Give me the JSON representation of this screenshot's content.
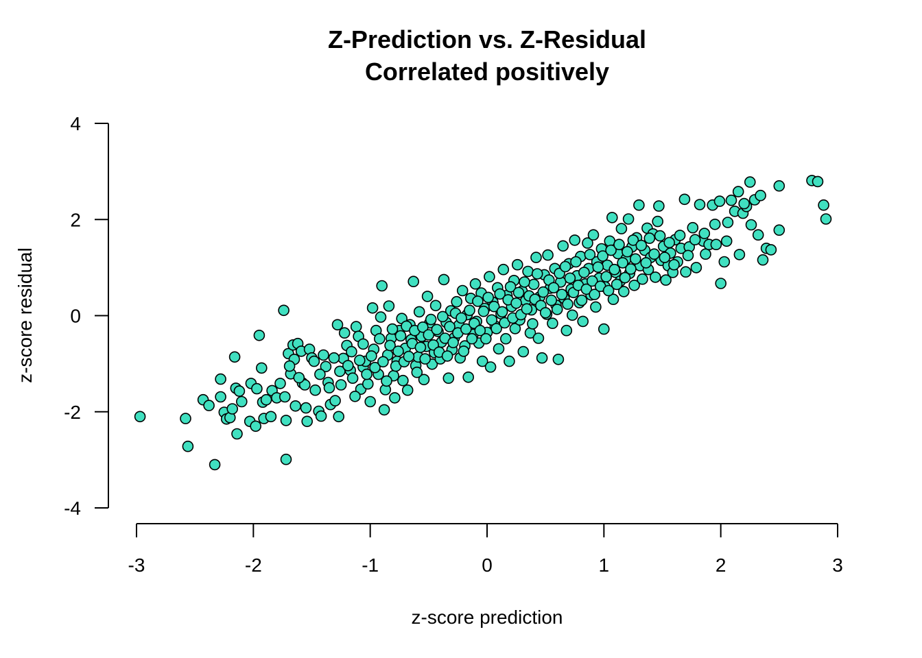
{
  "chart_data": {
    "type": "scatter",
    "title": "Z-Prediction vs. Z-Residual",
    "subtitle": "Correlated positively",
    "xlabel": "z-score prediction",
    "ylabel": "z-score residual",
    "xlim": [
      -3,
      3
    ],
    "ylim": [
      -4,
      4
    ],
    "x_ticks": [
      "-3",
      "-2",
      "-1",
      "0",
      "1",
      "2",
      "3"
    ],
    "y_ticks": [
      "-4",
      "-2",
      "0",
      "2",
      "4"
    ],
    "grid": false,
    "legend": "none",
    "point_color": "#40E0C0",
    "point_edge_color": "#000000",
    "points": [
      [
        -2.97,
        -2.1
      ],
      [
        -2.58,
        -2.14
      ],
      [
        -2.56,
        -2.72
      ],
      [
        -2.43,
        -1.75
      ],
      [
        -2.38,
        -1.87
      ],
      [
        -2.33,
        -3.1
      ],
      [
        -2.28,
        -1.32
      ],
      [
        -2.28,
        -1.69
      ],
      [
        -2.25,
        -2.01
      ],
      [
        -2.23,
        -2.15
      ],
      [
        -2.2,
        -2.12
      ],
      [
        -2.18,
        -1.94
      ],
      [
        -2.16,
        -0.86
      ],
      [
        -2.15,
        -1.51
      ],
      [
        -2.14,
        -2.46
      ],
      [
        -2.12,
        -1.57
      ],
      [
        -2.1,
        -1.79
      ],
      [
        -2.03,
        -2.2
      ],
      [
        -2.02,
        -1.41
      ],
      [
        -1.98,
        -2.3
      ],
      [
        -1.97,
        -1.52
      ],
      [
        -1.95,
        -0.41
      ],
      [
        -1.93,
        -1.09
      ],
      [
        -1.92,
        -1.8
      ],
      [
        -1.91,
        -2.14
      ],
      [
        -1.89,
        -1.75
      ],
      [
        -1.85,
        -2.1
      ],
      [
        -1.84,
        -1.56
      ],
      [
        -1.8,
        -1.71
      ],
      [
        -1.77,
        -1.41
      ],
      [
        -1.74,
        0.11
      ],
      [
        -1.73,
        -1.69
      ],
      [
        -1.72,
        -2.18
      ],
      [
        -1.72,
        -2.99
      ],
      [
        -1.7,
        -0.79
      ],
      [
        -1.68,
        -1.21
      ],
      [
        -1.66,
        -0.61
      ],
      [
        -1.65,
        -0.91
      ],
      [
        -1.64,
        -1.88
      ],
      [
        -1.62,
        -0.58
      ],
      [
        -1.59,
        -0.74
      ],
      [
        -1.58,
        -1.4
      ],
      [
        -1.56,
        -1.44
      ],
      [
        -1.55,
        -1.92
      ],
      [
        -1.54,
        -2.2
      ],
      [
        -1.52,
        -0.7
      ],
      [
        -1.5,
        -0.88
      ],
      [
        -1.47,
        -1.55
      ],
      [
        -1.44,
        -1.99
      ],
      [
        -1.42,
        -2.09
      ],
      [
        -1.4,
        -0.82
      ],
      [
        -1.38,
        -1.06
      ],
      [
        -1.36,
        -1.39
      ],
      [
        -1.34,
        -1.85
      ],
      [
        -1.3,
        -1.77
      ],
      [
        -1.28,
        -0.19
      ],
      [
        -1.27,
        -2.1
      ],
      [
        -1.25,
        -1.44
      ],
      [
        -1.23,
        -0.89
      ],
      [
        -1.2,
        -0.62
      ],
      [
        -1.17,
        -1.14
      ],
      [
        -1.15,
        -1.3
      ],
      [
        -1.12,
        -0.23
      ],
      [
        -1.1,
        -0.43
      ],
      [
        -1.08,
        -1.53
      ],
      [
        -1.06,
        -1.07
      ],
      [
        -1.04,
        -0.95
      ],
      [
        -1.02,
        -1.42
      ],
      [
        -1.0,
        -1.79
      ],
      [
        -0.98,
        0.16
      ],
      [
        -0.97,
        -0.7
      ],
      [
        -0.95,
        -0.31
      ],
      [
        -0.93,
        -1.22
      ],
      [
        -0.91,
        -0.03
      ],
      [
        -0.9,
        0.62
      ],
      [
        -0.88,
        -1.96
      ],
      [
        -0.87,
        -1.54
      ],
      [
        -0.85,
        -0.82
      ],
      [
        -0.84,
        0.2
      ],
      [
        -0.82,
        -0.47
      ],
      [
        -0.8,
        -1.25
      ],
      [
        -0.79,
        -1.71
      ],
      [
        -0.77,
        -0.95
      ],
      [
        -0.75,
        -0.31
      ],
      [
        -0.73,
        -0.06
      ],
      [
        -0.72,
        -1.35
      ],
      [
        -0.7,
        -0.68
      ],
      [
        -0.68,
        -1.55
      ],
      [
        -0.66,
        -0.19
      ],
      [
        -0.65,
        -0.5
      ],
      [
        -0.63,
        0.71
      ],
      [
        -0.61,
        -1.04
      ],
      [
        -0.59,
        -0.86
      ],
      [
        -0.58,
        0.08
      ],
      [
        -0.56,
        -0.43
      ],
      [
        -0.54,
        -1.33
      ],
      [
        -0.52,
        -0.64
      ],
      [
        -0.51,
        0.4
      ],
      [
        -0.49,
        -0.15
      ],
      [
        -0.47,
        -1.01
      ],
      [
        -0.45,
        -0.77
      ],
      [
        -0.44,
        0.21
      ],
      [
        -0.42,
        -0.33
      ],
      [
        -0.4,
        -0.9
      ],
      [
        -0.39,
        -0.55
      ],
      [
        -0.37,
        0.75
      ],
      [
        -0.35,
        -0.14
      ],
      [
        -0.33,
        -1.3
      ],
      [
        -0.31,
        0.1
      ],
      [
        -0.3,
        -0.71
      ],
      [
        -0.28,
        -0.46
      ],
      [
        -0.26,
        0.29
      ],
      [
        -0.24,
        -0.2
      ],
      [
        -0.23,
        -0.88
      ],
      [
        -0.21,
        0.52
      ],
      [
        -0.19,
        -0.63
      ],
      [
        -0.17,
        0.02
      ],
      [
        -0.16,
        -1.28
      ],
      [
        -0.14,
        0.36
      ],
      [
        -0.12,
        -0.39
      ],
      [
        -0.1,
        0.66
      ],
      [
        -0.09,
        -0.12
      ],
      [
        -0.07,
        -0.57
      ],
      [
        -0.05,
        0.47
      ],
      [
        -0.04,
        -0.95
      ],
      [
        -0.02,
        0.15
      ],
      [
        0.0,
        -0.35
      ],
      [
        0.02,
        0.81
      ],
      [
        0.03,
        -1.07
      ],
      [
        0.05,
        0.28
      ],
      [
        0.07,
        -0.22
      ],
      [
        0.09,
        0.58
      ],
      [
        0.1,
        -0.69
      ],
      [
        0.12,
        0.04
      ],
      [
        0.14,
        0.96
      ],
      [
        0.16,
        -0.48
      ],
      [
        0.17,
        0.42
      ],
      [
        0.19,
        -0.95
      ],
      [
        0.21,
        0.19
      ],
      [
        0.23,
        0.73
      ],
      [
        0.24,
        -0.27
      ],
      [
        0.26,
        1.06
      ],
      [
        0.28,
        -0.09
      ],
      [
        0.3,
        0.51
      ],
      [
        0.31,
        -0.75
      ],
      [
        0.33,
        0.31
      ],
      [
        0.35,
        0.92
      ],
      [
        0.37,
        -0.36
      ],
      [
        0.38,
        0.12
      ],
      [
        0.4,
        0.65
      ],
      [
        0.42,
        1.21
      ],
      [
        0.44,
        -0.47
      ],
      [
        0.45,
        0.39
      ],
      [
        0.47,
        -0.88
      ],
      [
        0.49,
        0.85
      ],
      [
        0.51,
        0.03
      ],
      [
        0.52,
        1.26
      ],
      [
        0.54,
        0.57
      ],
      [
        0.56,
        -0.16
      ],
      [
        0.58,
        0.98
      ],
      [
        0.59,
        0.22
      ],
      [
        0.61,
        -0.91
      ],
      [
        0.63,
        0.7
      ],
      [
        0.65,
        1.45
      ],
      [
        0.66,
        0.36
      ],
      [
        0.68,
        -0.31
      ],
      [
        0.7,
        1.08
      ],
      [
        0.72,
        0.55
      ],
      [
        0.73,
        0.01
      ],
      [
        0.75,
        1.57
      ],
      [
        0.77,
        0.83
      ],
      [
        0.79,
        0.27
      ],
      [
        0.8,
        1.23
      ],
      [
        0.82,
        -0.12
      ],
      [
        0.84,
        0.66
      ],
      [
        0.86,
        1.51
      ],
      [
        0.87,
        0.98
      ],
      [
        0.89,
        0.43
      ],
      [
        0.91,
        1.68
      ],
      [
        0.93,
        0.18
      ],
      [
        0.94,
        1.12
      ],
      [
        0.96,
        0.78
      ],
      [
        0.98,
        1.39
      ],
      [
        1.0,
        -0.28
      ],
      [
        1.01,
        0.6
      ],
      [
        1.03,
        1.05
      ],
      [
        1.05,
        1.55
      ],
      [
        1.07,
        2.04
      ],
      [
        1.08,
        0.34
      ],
      [
        1.1,
        0.9
      ],
      [
        1.12,
        1.29
      ],
      [
        1.14,
        0.72
      ],
      [
        1.15,
        1.81
      ],
      [
        1.17,
        0.5
      ],
      [
        1.19,
        1.18
      ],
      [
        1.21,
        2.01
      ],
      [
        1.22,
        0.88
      ],
      [
        1.24,
        1.43
      ],
      [
        1.26,
        0.63
      ],
      [
        1.28,
        1.62
      ],
      [
        1.3,
        2.3
      ],
      [
        1.31,
        1.04
      ],
      [
        1.33,
        0.76
      ],
      [
        1.35,
        1.36
      ],
      [
        1.37,
        1.82
      ],
      [
        1.38,
        0.96
      ],
      [
        1.4,
        1.21
      ],
      [
        1.42,
        1.7
      ],
      [
        1.44,
        0.8
      ],
      [
        1.46,
        1.96
      ],
      [
        1.47,
        2.28
      ],
      [
        1.49,
        1.15
      ],
      [
        1.51,
        1.44
      ],
      [
        1.53,
        0.74
      ],
      [
        1.55,
        1.04
      ],
      [
        1.57,
        1.3
      ],
      [
        1.59,
        0.9
      ],
      [
        1.61,
        1.58
      ],
      [
        1.63,
        1.12
      ],
      [
        1.66,
        1.4
      ],
      [
        1.69,
        2.42
      ],
      [
        1.7,
        0.91
      ],
      [
        1.73,
        1.43
      ],
      [
        1.76,
        1.83
      ],
      [
        1.79,
        1.0
      ],
      [
        1.82,
        2.31
      ],
      [
        1.85,
        1.55
      ],
      [
        1.87,
        1.28
      ],
      [
        1.9,
        1.48
      ],
      [
        1.93,
        2.3
      ],
      [
        1.96,
        1.48
      ],
      [
        1.99,
        2.38
      ],
      [
        2.0,
        0.67
      ],
      [
        2.03,
        1.12
      ],
      [
        2.05,
        1.55
      ],
      [
        2.09,
        2.4
      ],
      [
        2.12,
        2.17
      ],
      [
        2.15,
        2.58
      ],
      [
        2.16,
        1.27
      ],
      [
        2.19,
        2.13
      ],
      [
        2.22,
        2.27
      ],
      [
        2.25,
        2.78
      ],
      [
        2.26,
        1.89
      ],
      [
        2.29,
        2.41
      ],
      [
        2.32,
        1.68
      ],
      [
        2.34,
        2.5
      ],
      [
        2.36,
        1.16
      ],
      [
        2.39,
        1.4
      ],
      [
        2.43,
        1.37
      ],
      [
        2.5,
        2.7
      ],
      [
        2.5,
        1.78
      ],
      [
        2.78,
        2.81
      ],
      [
        2.83,
        2.79
      ],
      [
        2.88,
        2.3
      ],
      [
        2.9,
        2.01
      ],
      [
        -1.69,
        -1.05
      ],
      [
        -1.61,
        -1.29
      ],
      [
        -1.48,
        -0.95
      ],
      [
        -1.43,
        -1.22
      ],
      [
        -1.35,
        -1.5
      ],
      [
        -1.31,
        -0.88
      ],
      [
        -1.26,
        -1.16
      ],
      [
        -1.22,
        -0.36
      ],
      [
        -1.19,
        -1.04
      ],
      [
        -1.16,
        -0.75
      ],
      [
        -1.13,
        -1.68
      ],
      [
        -1.09,
        -0.93
      ],
      [
        -1.06,
        -0.59
      ],
      [
        -1.03,
        -1.22
      ],
      [
        -0.99,
        -0.84
      ],
      [
        -0.96,
        -1.08
      ],
      [
        -0.92,
        -0.48
      ],
      [
        -0.89,
        -0.96
      ],
      [
        -0.86,
        -1.36
      ],
      [
        -0.83,
        -0.62
      ],
      [
        -0.81,
        -0.28
      ],
      [
        -0.78,
        -1.05
      ],
      [
        -0.76,
        -0.74
      ],
      [
        -0.74,
        -0.42
      ],
      [
        -0.71,
        -0.96
      ],
      [
        -0.69,
        -0.22
      ],
      [
        -0.67,
        -0.85
      ],
      [
        -0.64,
        -0.58
      ],
      [
        -0.62,
        -0.31
      ],
      [
        -0.6,
        -1.18
      ],
      [
        -0.57,
        -0.66
      ],
      [
        -0.55,
        -0.24
      ],
      [
        -0.53,
        -0.9
      ],
      [
        -0.5,
        -0.4
      ],
      [
        -0.48,
        -0.08
      ],
      [
        -0.46,
        -0.61
      ],
      [
        -0.43,
        -0.29
      ],
      [
        -0.41,
        -0.76
      ],
      [
        -0.38,
        -0.02
      ],
      [
        -0.36,
        -0.47
      ],
      [
        -0.34,
        -0.84
      ],
      [
        -0.32,
        -0.23
      ],
      [
        -0.29,
        -0.56
      ],
      [
        -0.27,
        0.05
      ],
      [
        -0.25,
        -0.36
      ],
      [
        -0.22,
        -0.05
      ],
      [
        -0.2,
        -0.74
      ],
      [
        -0.18,
        -0.28
      ],
      [
        -0.15,
        0.11
      ],
      [
        -0.13,
        -0.48
      ],
      [
        -0.11,
        -0.16
      ],
      [
        -0.08,
        0.3
      ],
      [
        -0.06,
        -0.31
      ],
      [
        -0.03,
        0.09
      ],
      [
        -0.01,
        -0.48
      ],
      [
        0.01,
        0.38
      ],
      [
        0.04,
        -0.09
      ],
      [
        0.06,
        0.19
      ],
      [
        0.08,
        -0.27
      ],
      [
        0.11,
        0.45
      ],
      [
        0.13,
        0.08
      ],
      [
        0.15,
        -0.15
      ],
      [
        0.18,
        0.33
      ],
      [
        0.2,
        0.6
      ],
      [
        0.22,
        -0.05
      ],
      [
        0.25,
        0.26
      ],
      [
        0.27,
        0.48
      ],
      [
        0.29,
        0.02
      ],
      [
        0.32,
        0.7
      ],
      [
        0.34,
        0.14
      ],
      [
        0.36,
        0.41
      ],
      [
        0.39,
        -0.17
      ],
      [
        0.41,
        0.34
      ],
      [
        0.43,
        0.87
      ],
      [
        0.46,
        0.21
      ],
      [
        0.48,
        0.49
      ],
      [
        0.5,
        0.06
      ],
      [
        0.53,
        0.74
      ],
      [
        0.55,
        0.32
      ],
      [
        0.57,
        0.58
      ],
      [
        0.6,
        0.13
      ],
      [
        0.62,
        0.88
      ],
      [
        0.64,
        0.44
      ],
      [
        0.67,
        1.02
      ],
      [
        0.69,
        0.24
      ],
      [
        0.71,
        0.78
      ],
      [
        0.74,
        0.48
      ],
      [
        0.76,
        1.12
      ],
      [
        0.78,
        0.63
      ],
      [
        0.81,
        0.32
      ],
      [
        0.83,
        0.9
      ],
      [
        0.85,
        0.55
      ],
      [
        0.88,
        1.27
      ],
      [
        0.9,
        0.72
      ],
      [
        0.92,
        0.44
      ],
      [
        0.95,
        1.01
      ],
      [
        0.97,
        0.61
      ],
      [
        0.99,
        1.24
      ],
      [
        1.02,
        0.81
      ],
      [
        1.04,
        0.52
      ],
      [
        1.06,
        1.36
      ],
      [
        1.09,
        0.96
      ],
      [
        1.11,
        0.65
      ],
      [
        1.13,
        1.48
      ],
      [
        1.16,
        1.1
      ],
      [
        1.18,
        0.79
      ],
      [
        1.2,
        1.33
      ],
      [
        1.23,
        0.97
      ],
      [
        1.25,
        1.57
      ],
      [
        1.27,
        1.18
      ],
      [
        1.32,
        1.46
      ],
      [
        1.36,
        1.1
      ],
      [
        1.39,
        1.61
      ],
      [
        1.43,
        1.28
      ],
      [
        1.48,
        1.66
      ],
      [
        1.52,
        1.21
      ],
      [
        1.56,
        1.52
      ],
      [
        1.6,
        1.06
      ],
      [
        1.65,
        1.67
      ],
      [
        1.72,
        1.25
      ],
      [
        1.78,
        1.58
      ],
      [
        1.86,
        1.71
      ],
      [
        1.95,
        1.9
      ],
      [
        2.06,
        1.94
      ],
      [
        2.2,
        2.33
      ]
    ]
  }
}
